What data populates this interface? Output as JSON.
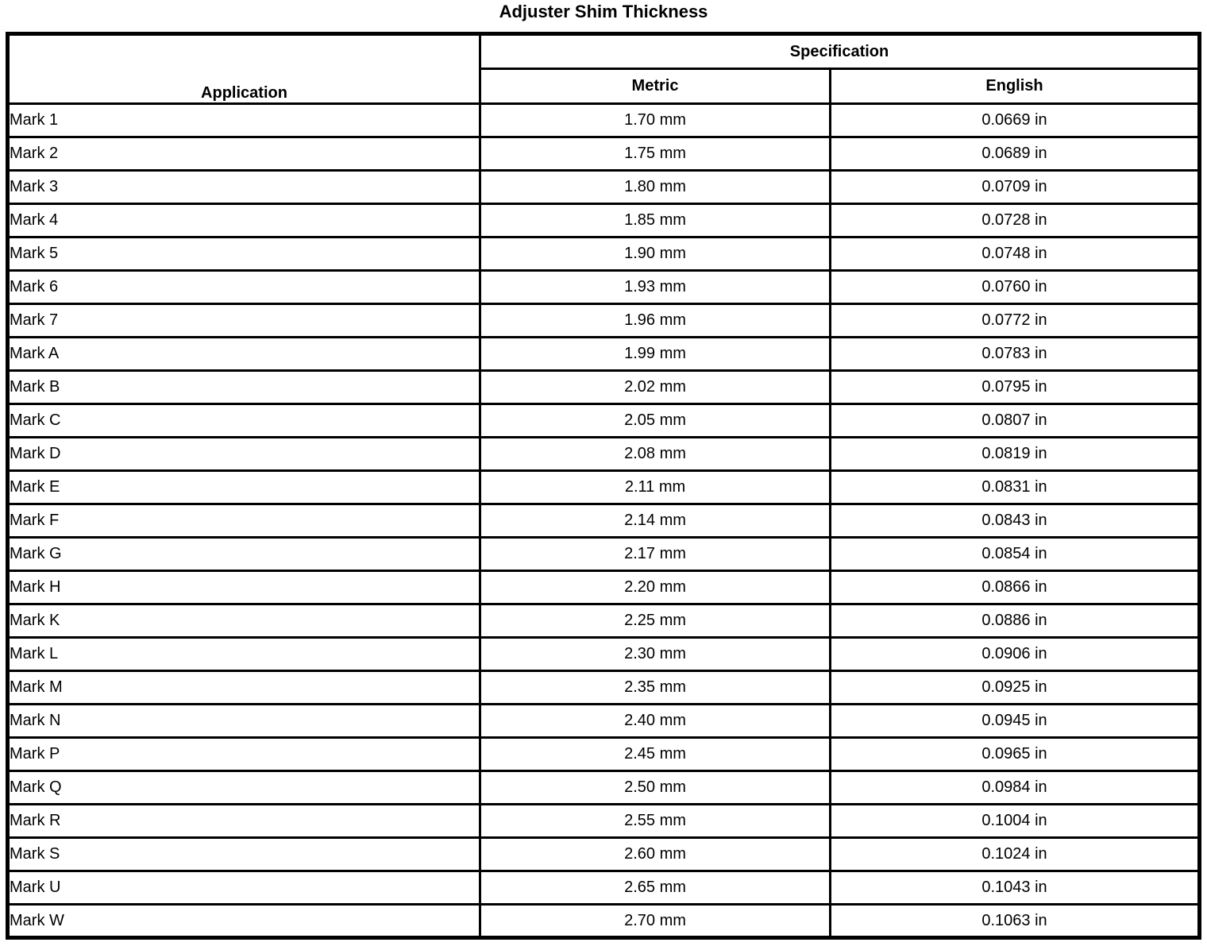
{
  "title": "Adjuster Shim Thickness",
  "table": {
    "headers": {
      "application": "Application",
      "specification": "Specification",
      "metric": "Metric",
      "english": "English"
    },
    "rows": [
      {
        "application": "Mark 1",
        "metric": "1.70 mm",
        "english": "0.0669 in"
      },
      {
        "application": "Mark 2",
        "metric": "1.75 mm",
        "english": "0.0689 in"
      },
      {
        "application": "Mark 3",
        "metric": "1.80 mm",
        "english": "0.0709 in"
      },
      {
        "application": "Mark 4",
        "metric": "1.85 mm",
        "english": "0.0728 in"
      },
      {
        "application": "Mark 5",
        "metric": "1.90 mm",
        "english": "0.0748 in"
      },
      {
        "application": "Mark 6",
        "metric": "1.93 mm",
        "english": "0.0760 in"
      },
      {
        "application": "Mark 7",
        "metric": "1.96 mm",
        "english": "0.0772 in"
      },
      {
        "application": "Mark A",
        "metric": "1.99 mm",
        "english": "0.0783 in"
      },
      {
        "application": "Mark B",
        "metric": "2.02 mm",
        "english": "0.0795 in"
      },
      {
        "application": "Mark C",
        "metric": "2.05 mm",
        "english": "0.0807 in"
      },
      {
        "application": "Mark D",
        "metric": "2.08 mm",
        "english": "0.0819 in"
      },
      {
        "application": "Mark E",
        "metric": "2.11 mm",
        "english": "0.0831 in"
      },
      {
        "application": "Mark F",
        "metric": "2.14 mm",
        "english": "0.0843 in"
      },
      {
        "application": "Mark G",
        "metric": "2.17 mm",
        "english": "0.0854 in"
      },
      {
        "application": "Mark H",
        "metric": "2.20 mm",
        "english": "0.0866 in"
      },
      {
        "application": "Mark K",
        "metric": "2.25 mm",
        "english": "0.0886 in"
      },
      {
        "application": "Mark L",
        "metric": "2.30 mm",
        "english": "0.0906 in"
      },
      {
        "application": "Mark M",
        "metric": "2.35 mm",
        "english": "0.0925 in"
      },
      {
        "application": "Mark N",
        "metric": "2.40 mm",
        "english": "0.0945 in"
      },
      {
        "application": "Mark P",
        "metric": "2.45 mm",
        "english": "0.0965 in"
      },
      {
        "application": "Mark Q",
        "metric": "2.50 mm",
        "english": "0.0984 in"
      },
      {
        "application": "Mark R",
        "metric": "2.55 mm",
        "english": "0.1004 in"
      },
      {
        "application": "Mark S",
        "metric": "2.60 mm",
        "english": "0.1024 in"
      },
      {
        "application": "Mark U",
        "metric": "2.65 mm",
        "english": "0.1043 in"
      },
      {
        "application": "Mark W",
        "metric": "2.70 mm",
        "english": "0.1063 in"
      }
    ]
  },
  "colors": {
    "border": "#000000",
    "text": "#000000",
    "background": "#ffffff"
  }
}
